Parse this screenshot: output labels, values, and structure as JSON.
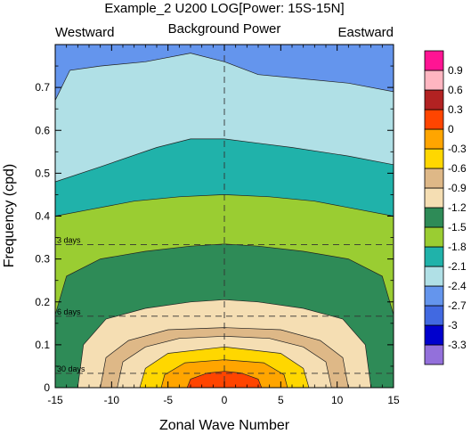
{
  "chart_data": {
    "type": "heatmap",
    "title": "Example_2 U200 LOG[Power: 15S-15N]",
    "subtitle_center": "Background Power",
    "subtitle_left": "Westward",
    "subtitle_right": "Eastward",
    "xlabel": "Zonal Wave Number",
    "ylabel": "Frequency (cpd)",
    "xlim": [
      -15,
      15
    ],
    "ylim": [
      0,
      0.8
    ],
    "x_ticks": [
      -15,
      -10,
      -5,
      0,
      5,
      10,
      15
    ],
    "x_tick_labels": [
      "-15",
      "-10",
      "-5",
      "0",
      "5",
      "10",
      "15"
    ],
    "y_ticks": [
      0,
      0.1,
      0.2,
      0.3,
      0.4,
      0.5,
      0.6,
      0.7
    ],
    "y_tick_labels": [
      "0",
      "0.1",
      "0.2",
      "0.3",
      "0.4",
      "0.5",
      "0.6",
      "0.7"
    ],
    "period_lines": [
      {
        "label": "3 days",
        "freq": 0.3333
      },
      {
        "label": "6 days",
        "freq": 0.1667
      },
      {
        "label": "30 days",
        "freq": 0.0333
      }
    ],
    "colorbar": {
      "levels": [
        -3.3,
        -3,
        -2.7,
        -2.4,
        -2.1,
        -1.8,
        -1.5,
        -1.2,
        -0.9,
        -0.6,
        -0.3,
        0,
        0.3,
        0.6,
        0.9
      ],
      "labels": [
        "-3.3",
        "-3",
        "-2.7",
        "-2.4",
        "-2.1",
        "-1.8",
        "-1.5",
        "-1.2",
        "-0.9",
        "-0.6",
        "-0.3",
        "0",
        "0.3",
        "0.6",
        "0.9"
      ],
      "colors": [
        "#9370db",
        "#0000cd",
        "#4169e1",
        "#6495ed",
        "#b0e0e6",
        "#20b2aa",
        "#9acd32",
        "#2e8b57",
        "#f5deb3",
        "#deb887",
        "#ffd700",
        "#ffa500",
        "#ff4500",
        "#b22222",
        "#ffb6c1",
        "#ff1493"
      ]
    },
    "contour_bands": [
      {
        "level": -2.7,
        "color": "#6495ed",
        "x": [
          -15,
          15
        ],
        "y": [
          0.8,
          0.8
        ]
      },
      {
        "level": -2.4,
        "color": "#b0e0e6",
        "x": [
          -15,
          -13.7,
          -11,
          -7,
          -3,
          0,
          3,
          7,
          11,
          15
        ],
        "y": [
          0.67,
          0.74,
          0.75,
          0.76,
          0.78,
          0.76,
          0.73,
          0.72,
          0.71,
          0.69
        ]
      },
      {
        "level": -2.1,
        "color": "#20b2aa",
        "x": [
          -15,
          -11,
          -6,
          -3,
          0,
          3,
          6,
          11,
          15
        ],
        "y": [
          0.48,
          0.515,
          0.56,
          0.58,
          0.58,
          0.57,
          0.56,
          0.54,
          0.52
        ]
      },
      {
        "level": -1.8,
        "color": "#9acd32",
        "x": [
          -15,
          -12,
          -8,
          -4,
          0,
          4,
          8,
          12,
          15
        ],
        "y": [
          0.4,
          0.415,
          0.435,
          0.445,
          0.45,
          0.445,
          0.435,
          0.415,
          0.4
        ]
      },
      {
        "level": -1.5,
        "color": "#2e8b57",
        "x": [
          -15,
          -14,
          -11,
          -7,
          -3,
          0,
          3,
          7,
          11,
          14,
          15
        ],
        "y": [
          0.17,
          0.26,
          0.3,
          0.318,
          0.33,
          0.335,
          0.33,
          0.318,
          0.3,
          0.26,
          0.17
        ]
      },
      {
        "level": -1.2,
        "color": "#f5deb3",
        "x": [
          -13,
          -12.5,
          -10.5,
          -7,
          -3,
          0,
          3,
          7,
          10.5,
          12.5,
          13
        ],
        "y": [
          0.0,
          0.1,
          0.16,
          0.185,
          0.2,
          0.205,
          0.2,
          0.185,
          0.16,
          0.1,
          0.0
        ]
      },
      {
        "level": -0.9,
        "color": "#deb887",
        "x": [
          -11,
          -10.5,
          -8.5,
          -5,
          0,
          5,
          8.5,
          10.5,
          11
        ],
        "y": [
          0.0,
          0.07,
          0.11,
          0.135,
          0.14,
          0.135,
          0.11,
          0.07,
          0.0
        ]
      },
      {
        "level": -0.6,
        "color": "#f5deb3",
        "x": [
          -9.5,
          -9,
          -7,
          -4,
          0,
          4,
          7,
          9,
          9.5
        ],
        "y": [
          0.0,
          0.06,
          0.095,
          0.115,
          0.12,
          0.115,
          0.095,
          0.06,
          0.0
        ]
      },
      {
        "level": -0.3,
        "color": "#ffd700",
        "x": [
          -7.5,
          -7,
          -5,
          0,
          5,
          7,
          7.5
        ],
        "y": [
          0.0,
          0.045,
          0.08,
          0.095,
          0.08,
          0.045,
          0.0
        ]
      },
      {
        "level": 0,
        "color": "#ffa500",
        "x": [
          -5.6,
          -5.3,
          -3.5,
          0,
          3.5,
          5.3,
          5.6
        ],
        "y": [
          0.0,
          0.03,
          0.058,
          0.065,
          0.058,
          0.03,
          0.0
        ]
      },
      {
        "level": 0.3,
        "color": "#ff4500",
        "x": [
          -3.3,
          -3,
          -1.5,
          0,
          1.5,
          3,
          3.3
        ],
        "y": [
          0.0,
          0.02,
          0.034,
          0.038,
          0.034,
          0.02,
          0.0
        ]
      }
    ]
  }
}
